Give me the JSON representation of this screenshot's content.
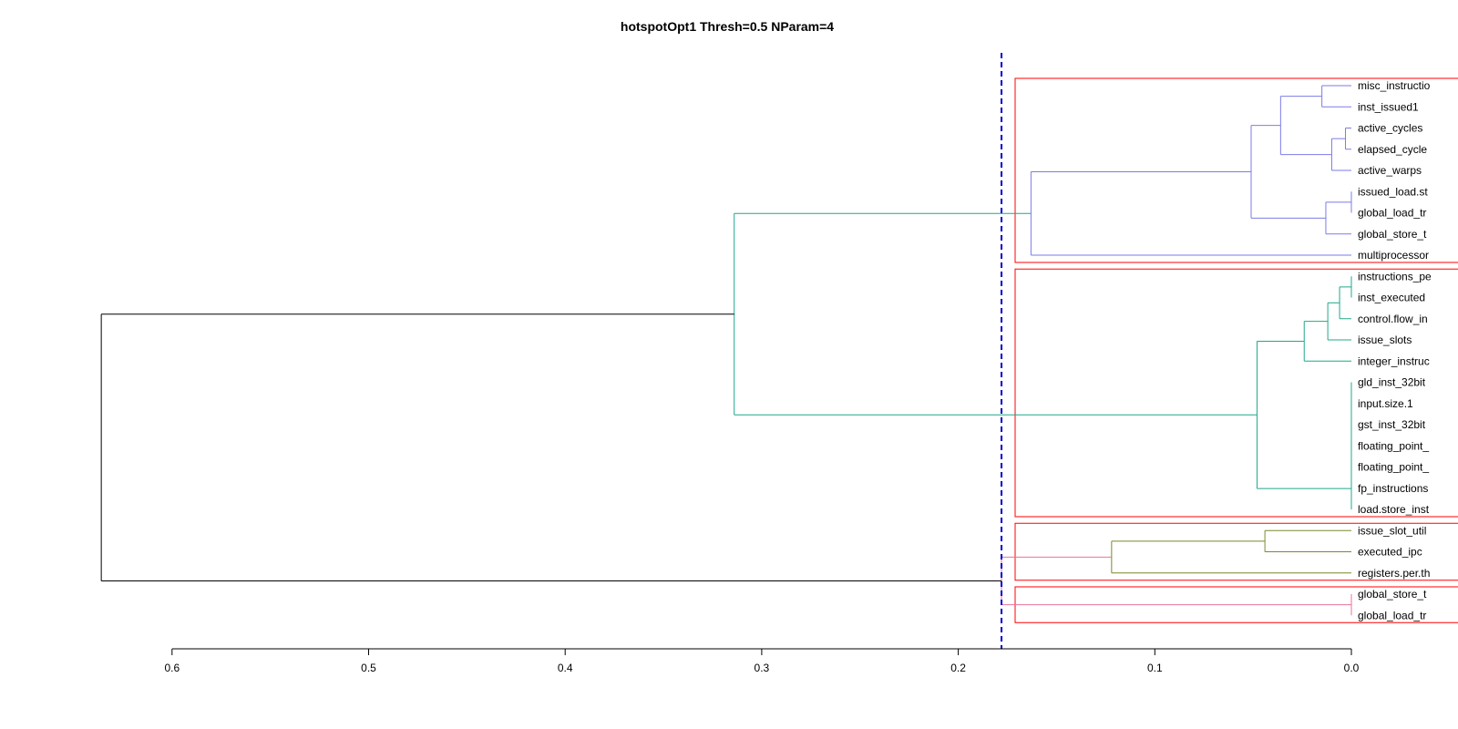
{
  "chart_data": {
    "type": "dendrogram",
    "title": "hotspotOpt1 Thresh=0.5 NParam=4",
    "orientation": "horizontal, root at left, leaves at right",
    "x_axis": {
      "range": [
        0.6,
        0.0
      ],
      "ticks": [
        0.6,
        0.5,
        0.4,
        0.3,
        0.2,
        0.1,
        0.0
      ],
      "tick_labels": [
        "0.6",
        "0.5",
        "0.4",
        "0.3",
        "0.2",
        "0.1",
        "0.0"
      ]
    },
    "cut_height": 0.178,
    "colors": {
      "cluster1": "#7B7BEA",
      "cluster2": "#1FA88A",
      "cluster3": "#788A2E",
      "cluster4": "#E7739C",
      "root": "#000000",
      "cut_line": "#0000CC",
      "cluster_box": "#FF0000"
    },
    "leaves": [
      "misc_instructio",
      "inst_issued1",
      "active_cycles",
      "elapsed_cycle",
      "active_warps",
      "issued_load.st",
      "global_load_tr",
      "global_store_t",
      "multiprocessor",
      "instructions_pe",
      "inst_executed",
      "control.flow_in",
      "issue_slots",
      "integer_instruc",
      "gld_inst_32bit",
      "input.size.1",
      "gst_inst_32bit",
      "floating_point_",
      "floating_point_",
      "fp_instructions",
      "load.store_inst",
      "issue_slot_util",
      "executed_ipc",
      "registers.per.th",
      "global_store_t",
      "global_load_tr"
    ],
    "merges": [
      {
        "id": "a",
        "children": [
          0,
          1
        ],
        "height": 0.015,
        "color": "cluster1"
      },
      {
        "id": "b",
        "children": [
          2,
          3
        ],
        "height": 0.003,
        "color": "cluster1"
      },
      {
        "id": "c",
        "children": [
          "b",
          4
        ],
        "height": 0.01,
        "color": "cluster1"
      },
      {
        "id": "d",
        "children": [
          "a",
          "c"
        ],
        "height": 0.036,
        "color": "cluster1"
      },
      {
        "id": "e",
        "children": [
          5,
          6
        ],
        "height": 0.0,
        "color": "cluster1"
      },
      {
        "id": "f",
        "children": [
          "e",
          7
        ],
        "height": 0.013,
        "color": "cluster1"
      },
      {
        "id": "g",
        "children": [
          "d",
          "f"
        ],
        "height": 0.051,
        "color": "cluster1"
      },
      {
        "id": "h",
        "children": [
          "g",
          8
        ],
        "height": 0.163,
        "color": "cluster1"
      },
      {
        "id": "i",
        "children": [
          9,
          10
        ],
        "height": 0.0,
        "color": "cluster2"
      },
      {
        "id": "j",
        "children": [
          "i",
          11
        ],
        "height": 0.006,
        "color": "cluster2"
      },
      {
        "id": "k",
        "children": [
          "j",
          12
        ],
        "height": 0.012,
        "color": "cluster2"
      },
      {
        "id": "l",
        "children": [
          "k",
          13
        ],
        "height": 0.024,
        "color": "cluster2"
      },
      {
        "id": "m",
        "children": [
          14,
          15
        ],
        "height": 0.0,
        "color": "cluster2"
      },
      {
        "id": "n",
        "children": [
          "m",
          16
        ],
        "height": 0.0,
        "color": "cluster2"
      },
      {
        "id": "o",
        "children": [
          "n",
          17
        ],
        "height": 0.0,
        "color": "cluster2"
      },
      {
        "id": "p",
        "children": [
          "o",
          18
        ],
        "height": 0.0,
        "color": "cluster2"
      },
      {
        "id": "q",
        "children": [
          "p",
          19
        ],
        "height": 0.0,
        "color": "cluster2"
      },
      {
        "id": "r",
        "children": [
          "q",
          20
        ],
        "height": 0.0,
        "color": "cluster2"
      },
      {
        "id": "s",
        "children": [
          "l",
          "r"
        ],
        "height": 0.048,
        "color": "cluster2"
      },
      {
        "id": "t",
        "children": [
          "h",
          "s"
        ],
        "height": 0.314,
        "color": "cluster2"
      },
      {
        "id": "u",
        "children": [
          21,
          22
        ],
        "height": 0.044,
        "color": "cluster3"
      },
      {
        "id": "v",
        "children": [
          "u",
          23
        ],
        "height": 0.122,
        "color": "cluster3"
      },
      {
        "id": "w",
        "children": [
          24,
          25
        ],
        "height": 0.0,
        "color": "cluster4"
      },
      {
        "id": "x",
        "children": [
          "v",
          "w"
        ],
        "height": 0.178,
        "color": "cluster4"
      },
      {
        "id": "y",
        "children": [
          "t",
          "x"
        ],
        "height": 0.636,
        "color": "root"
      }
    ],
    "clusters": [
      {
        "first_leaf": 0,
        "last_leaf": 8
      },
      {
        "first_leaf": 9,
        "last_leaf": 20
      },
      {
        "first_leaf": 21,
        "last_leaf": 23
      },
      {
        "first_leaf": 24,
        "last_leaf": 25
      }
    ]
  }
}
